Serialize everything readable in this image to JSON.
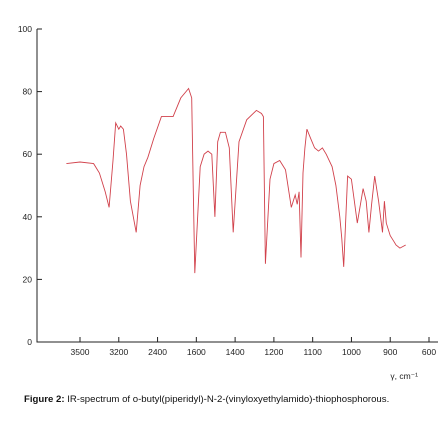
{
  "chart_data": {
    "type": "line",
    "title": "",
    "xlabel": "γ, cm⁻¹",
    "ylabel": "",
    "series_color": "#d1414b",
    "y_ticks": [
      0,
      20,
      40,
      60,
      80,
      100
    ],
    "x_ticks": [
      {
        "label": "3500",
        "pos": 0
      },
      {
        "label": "3200",
        "pos": 1
      },
      {
        "label": "2400",
        "pos": 2
      },
      {
        "label": "1600",
        "pos": 3
      },
      {
        "label": "1400",
        "pos": 4
      },
      {
        "label": "1200",
        "pos": 5
      },
      {
        "label": "1100",
        "pos": 6
      },
      {
        "label": "1000",
        "pos": 7
      },
      {
        "label": "900",
        "pos": 8
      },
      {
        "label": "600",
        "pos": 9
      }
    ],
    "ylim": [
      0,
      100
    ],
    "xlim": [
      -0.75,
      9.2
    ],
    "grid": false,
    "series": [
      {
        "x": [
          -0.35,
          0,
          0.35,
          0.5,
          0.65,
          0.75,
          0.85,
          0.92,
          1.0,
          1.05,
          1.12,
          1.2,
          1.3,
          1.45,
          1.55,
          1.65,
          1.75,
          1.9,
          2.1,
          2.4,
          2.6,
          2.8,
          2.88,
          2.92,
          2.96,
          3.1,
          3.2,
          3.3,
          3.4,
          3.48,
          3.55,
          3.62,
          3.75,
          3.85,
          3.95,
          4.1,
          4.3,
          4.55,
          4.68,
          4.73,
          4.78,
          4.9,
          5.0,
          5.15,
          5.3,
          5.45,
          5.55,
          5.6,
          5.65,
          5.7,
          5.75,
          5.8,
          5.85,
          5.95,
          6.05,
          6.15,
          6.25,
          6.35,
          6.5,
          6.6,
          6.7,
          6.75,
          6.8,
          6.9,
          7.0,
          7.15,
          7.3,
          7.38,
          7.45,
          7.52,
          7.6,
          7.7,
          7.8,
          7.85,
          7.9,
          8.0,
          8.1,
          8.15,
          8.25,
          8.4
        ],
        "y": [
          57,
          57.5,
          57,
          54,
          48,
          43,
          58,
          70,
          68,
          69,
          68,
          60,
          45,
          35,
          50,
          56,
          59,
          65,
          72,
          72,
          78,
          81,
          78,
          50,
          22,
          56,
          60,
          61,
          60,
          40,
          64,
          67,
          67,
          62,
          35,
          64,
          71,
          74,
          73,
          72,
          25,
          52,
          57,
          58,
          55,
          43,
          47,
          44,
          48,
          27,
          54,
          62,
          68,
          65,
          62,
          61,
          62,
          60,
          56,
          50,
          40,
          33,
          24,
          53,
          52,
          38,
          49,
          45,
          35,
          44,
          53,
          45,
          35,
          45,
          38,
          34,
          32,
          31,
          30,
          31
        ]
      }
    ]
  },
  "caption": {
    "label": "Figure 2:",
    "text": "IR-spectrum of o-butyl(piperidyl)-N-2-(vinyloxyethylamido)-thiophosphorous."
  }
}
